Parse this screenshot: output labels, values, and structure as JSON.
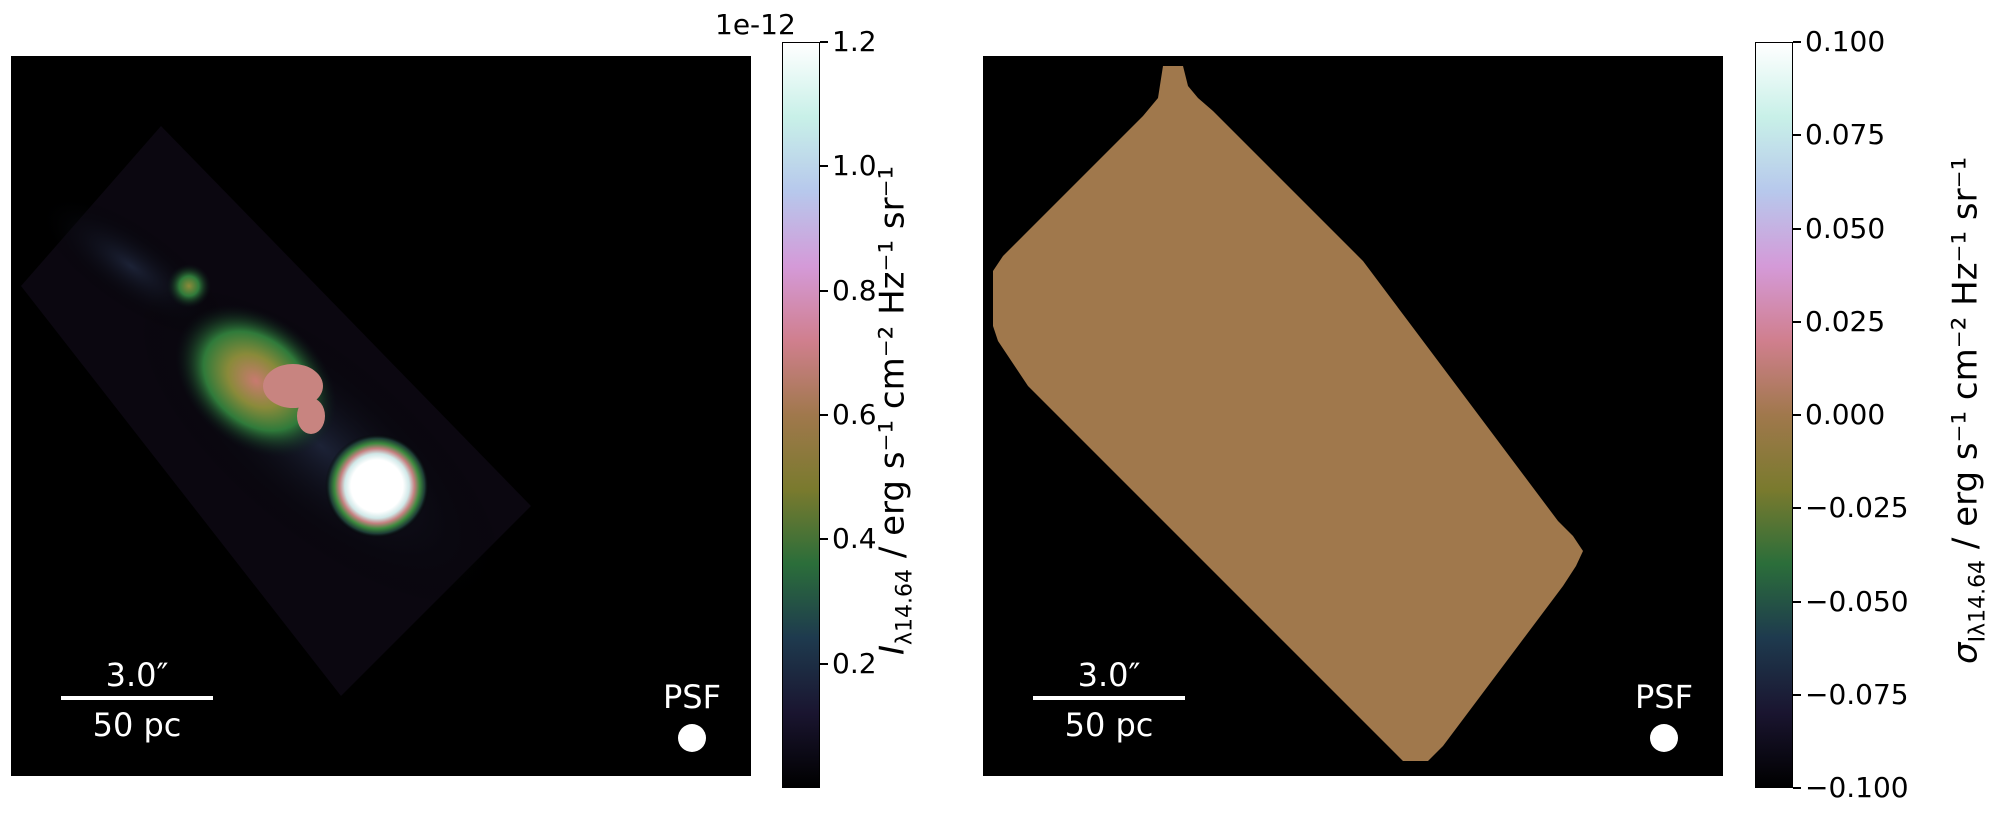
{
  "chart_data": [
    {
      "type": "heatmap",
      "panel": "left",
      "colormap": "cubehelix",
      "colorbar": {
        "ticks": [
          0.2,
          0.4,
          0.6,
          0.8,
          1.0,
          1.2
        ],
        "tick_labels": [
          "0.2",
          "0.4",
          "0.6",
          "0.8",
          "1.0",
          "1.2"
        ],
        "range": [
          0.0,
          1.2
        ],
        "offset_text": "1e-12",
        "label_main": "I",
        "label_sub": "λ14.64",
        "label_units": "/ erg s⁻¹ cm⁻² Hz⁻¹ sr⁻¹"
      },
      "scalebar": {
        "angle": "3.0″",
        "distance": "50 pc"
      },
      "psf_label": "PSF"
    },
    {
      "type": "heatmap",
      "panel": "right",
      "colormap": "cubehelix",
      "uniform_value": 0.0,
      "colorbar": {
        "ticks": [
          -0.1,
          -0.075,
          -0.05,
          -0.025,
          0.0,
          0.025,
          0.05,
          0.075,
          0.1
        ],
        "tick_labels": [
          "−0.100",
          "−0.075",
          "−0.050",
          "−0.025",
          "0.000",
          "0.025",
          "0.050",
          "0.075",
          "0.100"
        ],
        "range": [
          -0.1,
          0.1
        ],
        "label_main": "σ",
        "label_sub": "Iλ14.64",
        "label_units": "/ erg s⁻¹ cm⁻² Hz⁻¹ sr⁻¹"
      },
      "scalebar": {
        "angle": "3.0″",
        "distance": "50 pc"
      },
      "psf_label": "PSF"
    }
  ],
  "colors": {
    "mask_fill": "#a0784c",
    "background": "#000000",
    "colormap_stops": [
      "#000000",
      "#1a1530",
      "#1e3a4e",
      "#2b6e3a",
      "#7a7a2e",
      "#a0784c",
      "#d07f8e",
      "#d49ad8",
      "#b7c8ec",
      "#c8f0e8",
      "#ffffff"
    ]
  }
}
